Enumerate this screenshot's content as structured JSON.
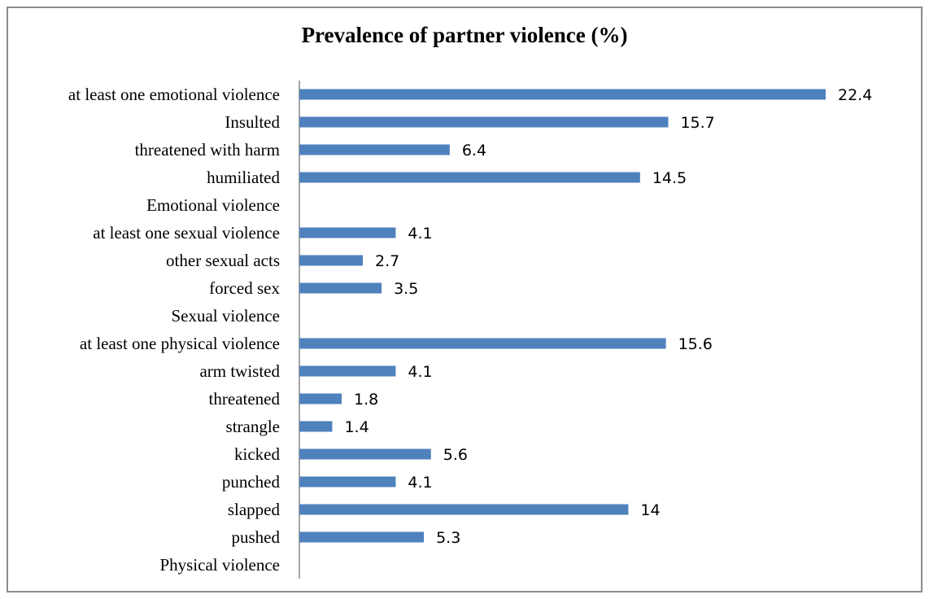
{
  "chart_data": {
    "type": "bar",
    "orientation": "horizontal",
    "title": "Prevalence of partner violence (%)",
    "categories": [
      "at least  one emotional violence",
      "Insulted",
      "threatened with harm",
      "humiliated",
      "Emotional violence",
      "at least  one sexual violence",
      "other sexual acts",
      "forced sex",
      "Sexual violence",
      "at least  one physical violence",
      "arm twisted",
      "threatened",
      "strangle",
      "kicked",
      "punched",
      "slapped",
      "pushed",
      "Physical violence"
    ],
    "values": [
      22.4,
      15.7,
      6.4,
      14.5,
      null,
      4.1,
      2.7,
      3.5,
      null,
      15.6,
      4.1,
      1.8,
      1.4,
      5.6,
      4.1,
      14,
      5.3,
      null
    ],
    "value_labels": [
      "22.4",
      "15.7",
      "6.4",
      "14.5",
      "",
      "4.1",
      "2.7",
      "3.5",
      "",
      "15.6",
      "4.1",
      "1.8",
      "1.4",
      "5.6",
      "4.1",
      "14",
      "5.3",
      ""
    ],
    "xlim": [
      0,
      25
    ],
    "grid": false,
    "legend": "none",
    "bar_color": "#4f81bd",
    "axis_color": "#868686"
  }
}
